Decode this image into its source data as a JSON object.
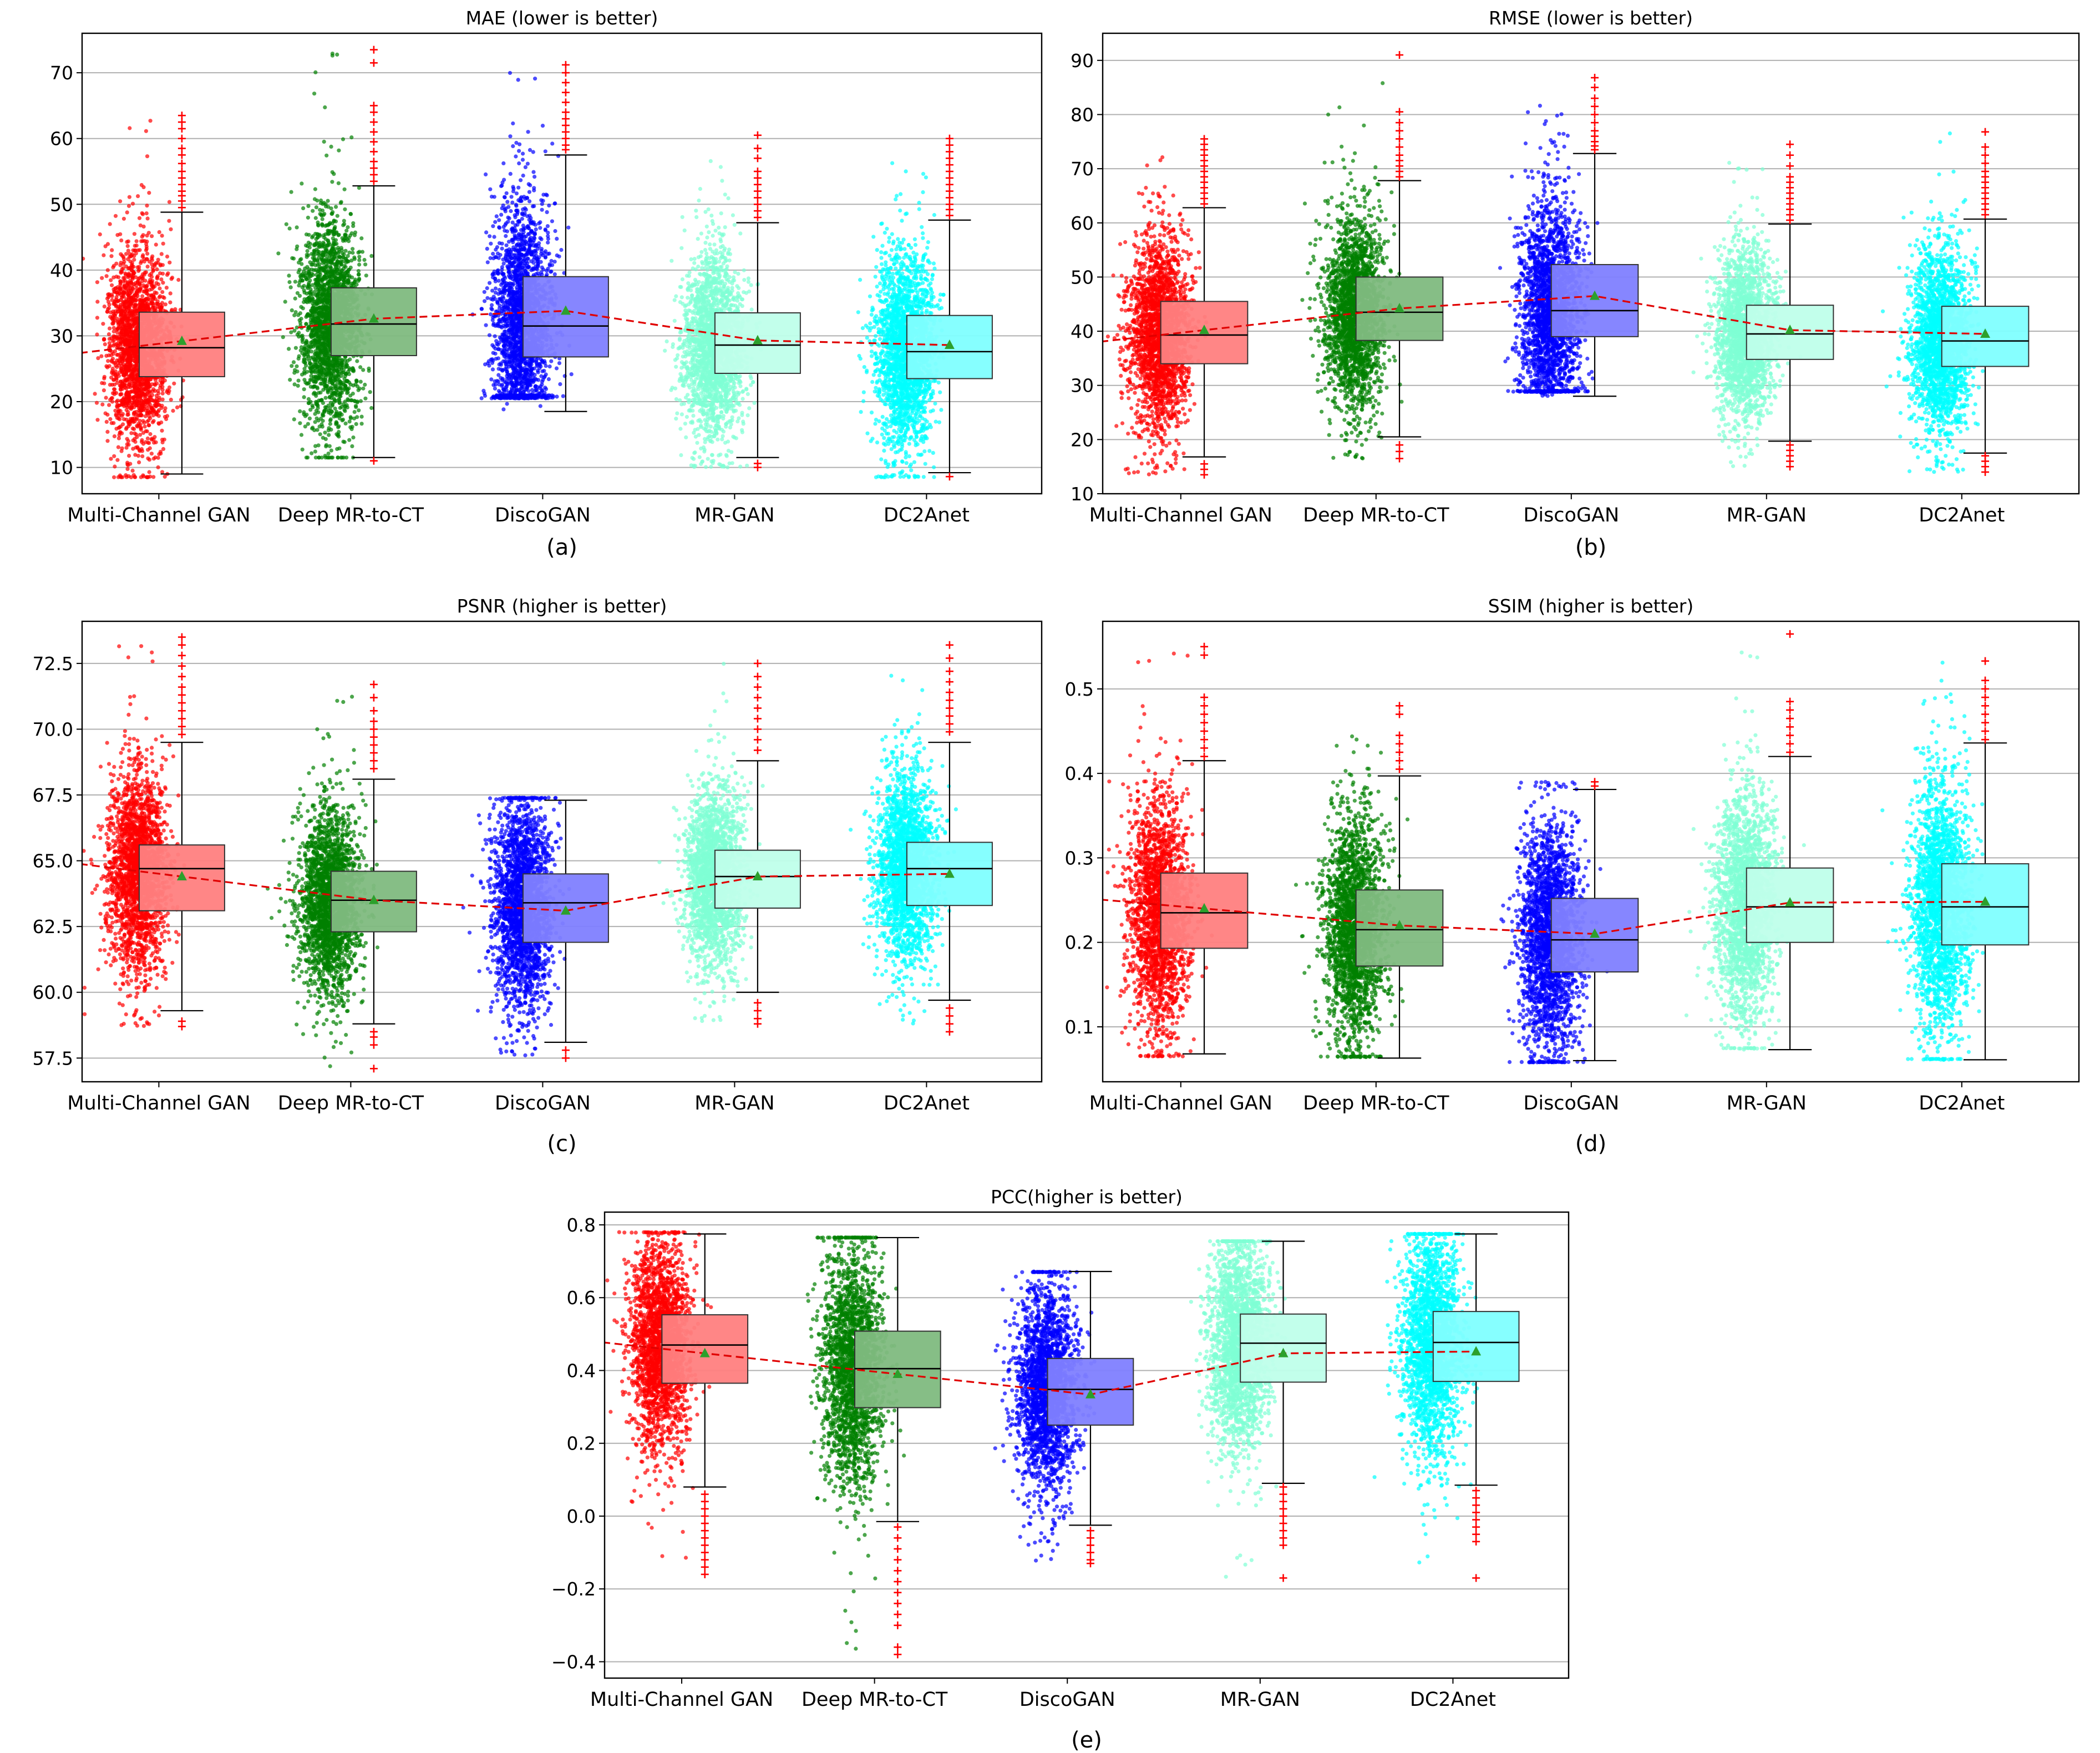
{
  "figure": {
    "method_names": [
      "Multi-Channel GAN",
      "Deep MR-to-CT",
      "DiscoGAN",
      "MR-GAN",
      "DC2Anet"
    ],
    "method_colors": [
      "#ff0000",
      "#008000",
      "#0000ff",
      "#7fffd4",
      "#00ffff"
    ],
    "box_colors": [
      "#ff8080",
      "#80bb80",
      "#8080ff",
      "#bfffea",
      "#80ffff"
    ],
    "mean_line_color": "#e00000",
    "mean_marker_color": "#2ca02c",
    "outlier_color": "#ff0000",
    "captions": [
      "(a)",
      "(b)",
      "(c)",
      "(d)",
      "(e)"
    ]
  },
  "chart_data": [
    {
      "type": "box",
      "title": "MAE (lower is better)",
      "caption": "(a)",
      "categories": [
        "Multi-Channel GAN",
        "Deep MR-to-CT",
        "DiscoGAN",
        "MR-GAN",
        "DC2Anet"
      ],
      "ylim": [
        6,
        76
      ],
      "yticks": [
        10,
        20,
        30,
        40,
        50,
        60,
        70
      ],
      "ytick_labels": [
        "10",
        "20",
        "30",
        "40",
        "50",
        "60",
        "70"
      ],
      "series": [
        {
          "name": "Multi-Channel GAN",
          "whisker_low": 9.0,
          "q1": 23.8,
          "median": 28.2,
          "q3": 33.6,
          "whisker_high": 48.8,
          "mean": 29.2,
          "scatter_min": 8.5,
          "scatter_max": 63.5,
          "outliers": [
            49.5,
            50.5,
            51.3,
            52.0,
            53.0,
            54.0,
            55.0,
            56.2,
            57.5,
            58.5,
            60.0,
            61.5,
            62.5,
            63.5
          ]
        },
        {
          "name": "Deep MR-to-CT",
          "whisker_low": 11.5,
          "q1": 27.0,
          "median": 31.8,
          "q3": 37.3,
          "whisker_high": 52.8,
          "mean": 32.6,
          "scatter_min": 11.5,
          "scatter_max": 73.5,
          "outliers": [
            11.0,
            53.5,
            54.5,
            55.5,
            56.5,
            58.0,
            59.5,
            61.0,
            62.5,
            64.0,
            65.0,
            71.5,
            73.5
          ]
        },
        {
          "name": "DiscoGAN",
          "whisker_low": 18.5,
          "q1": 26.8,
          "median": 31.5,
          "q3": 39.0,
          "whisker_high": 57.5,
          "mean": 33.8,
          "scatter_min": 21.0,
          "scatter_max": 71.5,
          "outliers": [
            58.3,
            59.0,
            60.0,
            61.0,
            62.0,
            63.0,
            64.0,
            65.5,
            67.0,
            68.5,
            70.0,
            71.2
          ]
        },
        {
          "name": "MR-GAN",
          "whisker_low": 11.5,
          "q1": 24.3,
          "median": 28.6,
          "q3": 33.5,
          "whisker_high": 47.2,
          "mean": 29.3,
          "scatter_min": 10.0,
          "scatter_max": 60.5,
          "outliers": [
            10.0,
            10.6,
            48.0,
            49.0,
            50.0,
            51.0,
            52.0,
            53.0,
            54.0,
            55.0,
            57.0,
            58.5,
            60.5
          ]
        },
        {
          "name": "DC2Anet",
          "whisker_low": 9.2,
          "q1": 23.5,
          "median": 27.6,
          "q3": 33.1,
          "whisker_high": 47.6,
          "mean": 28.6,
          "scatter_min": 8.5,
          "scatter_max": 60.0,
          "outliers": [
            8.6,
            48.3,
            49.2,
            50.0,
            51.0,
            52.0,
            53.0,
            54.0,
            55.0,
            56.0,
            57.0,
            58.0,
            59.0,
            60.0
          ]
        }
      ]
    },
    {
      "type": "box",
      "title": "RMSE (lower is better)",
      "caption": "(b)",
      "categories": [
        "Multi-Channel GAN",
        "Deep MR-to-CT",
        "DiscoGAN",
        "MR-GAN",
        "DC2Anet"
      ],
      "ylim": [
        10,
        95
      ],
      "yticks": [
        10,
        20,
        30,
        40,
        50,
        60,
        70,
        80,
        90
      ],
      "ytick_labels": [
        "10",
        "20",
        "30",
        "40",
        "50",
        "60",
        "70",
        "80",
        "90"
      ],
      "series": [
        {
          "name": "Multi-Channel GAN",
          "whisker_low": 16.8,
          "q1": 34.0,
          "median": 39.3,
          "q3": 45.5,
          "whisker_high": 62.8,
          "mean": 40.2,
          "scatter_min": 13.5,
          "scatter_max": 75.5,
          "outliers": [
            13.5,
            14.5,
            15.5,
            63.5,
            64.5,
            65.5,
            66.5,
            67.5,
            68.5,
            69.5,
            70.5,
            71.5,
            72.5,
            73.5,
            74.5,
            75.5
          ]
        },
        {
          "name": "Deep MR-to-CT",
          "whisker_low": 20.5,
          "q1": 38.3,
          "median": 43.5,
          "q3": 50.0,
          "whisker_high": 67.8,
          "mean": 44.2,
          "scatter_min": 16.5,
          "scatter_max": 91.0,
          "outliers": [
            16.5,
            17.8,
            19.0,
            68.5,
            69.5,
            70.5,
            71.5,
            72.5,
            74.0,
            75.5,
            77.0,
            78.5,
            80.5,
            91.0
          ]
        },
        {
          "name": "DiscoGAN",
          "whisker_low": 28.0,
          "q1": 39.0,
          "median": 43.8,
          "q3": 52.3,
          "whisker_high": 72.8,
          "mean": 46.5,
          "scatter_min": 29.0,
          "scatter_max": 87.0,
          "outliers": [
            73.5,
            74.2,
            75.0,
            76.0,
            77.0,
            78.5,
            80.0,
            81.5,
            83.0,
            85.0,
            86.8
          ]
        },
        {
          "name": "MR-GAN",
          "whisker_low": 19.7,
          "q1": 34.8,
          "median": 39.5,
          "q3": 44.8,
          "whisker_high": 59.8,
          "mean": 40.2,
          "scatter_min": 15.0,
          "scatter_max": 74.5,
          "outliers": [
            15.0,
            16.0,
            17.0,
            18.0,
            19.0,
            60.5,
            61.5,
            62.5,
            63.5,
            64.5,
            65.5,
            66.5,
            67.5,
            68.5,
            70.5,
            72.5,
            74.5
          ]
        },
        {
          "name": "DC2Anet",
          "whisker_low": 17.5,
          "q1": 33.5,
          "median": 38.2,
          "q3": 44.6,
          "whisker_high": 60.7,
          "mean": 39.5,
          "scatter_min": 13.8,
          "scatter_max": 77.0,
          "outliers": [
            14.0,
            15.0,
            16.0,
            17.0,
            61.5,
            62.5,
            63.5,
            64.5,
            65.5,
            66.5,
            67.5,
            68.5,
            69.5,
            71.0,
            72.5,
            74.0,
            76.8
          ]
        }
      ]
    },
    {
      "type": "box",
      "title": "PSNR (higher is better)",
      "caption": "(c)",
      "categories": [
        "Multi-Channel GAN",
        "Deep MR-to-CT",
        "DiscoGAN",
        "MR-GAN",
        "DC2Anet"
      ],
      "ylim": [
        56.6,
        74.1
      ],
      "yticks": [
        57.5,
        60.0,
        62.5,
        65.0,
        67.5,
        70.0,
        72.5
      ],
      "ytick_labels": [
        "57.5",
        "60.0",
        "62.5",
        "65.0",
        "67.5",
        "70.0",
        "72.5"
      ],
      "series": [
        {
          "name": "Multi-Channel GAN",
          "whisker_low": 59.3,
          "q1": 63.1,
          "median": 64.7,
          "q3": 65.6,
          "whisker_high": 69.5,
          "mean": 64.4,
          "scatter_min": 58.7,
          "scatter_max": 73.5,
          "outliers": [
            58.7,
            58.9,
            69.8,
            70.1,
            70.4,
            70.7,
            71.0,
            71.3,
            71.6,
            72.0,
            72.4,
            72.8,
            73.2,
            73.5
          ]
        },
        {
          "name": "Deep MR-to-CT",
          "whisker_low": 58.8,
          "q1": 62.3,
          "median": 63.5,
          "q3": 64.6,
          "whisker_high": 68.1,
          "mean": 63.5,
          "scatter_min": 57.1,
          "scatter_max": 71.8,
          "outliers": [
            57.1,
            58.0,
            58.3,
            58.5,
            68.5,
            68.8,
            69.1,
            69.4,
            69.7,
            70.0,
            70.3,
            70.7,
            71.2,
            71.7
          ]
        },
        {
          "name": "DiscoGAN",
          "whisker_low": 58.1,
          "q1": 61.9,
          "median": 63.4,
          "q3": 64.5,
          "whisker_high": 67.3,
          "mean": 63.1,
          "scatter_min": 57.6,
          "scatter_max": 67.4,
          "outliers": [
            57.5,
            57.8
          ]
        },
        {
          "name": "MR-GAN",
          "whisker_low": 60.0,
          "q1": 63.2,
          "median": 64.4,
          "q3": 65.4,
          "whisker_high": 68.8,
          "mean": 64.4,
          "scatter_min": 58.9,
          "scatter_max": 72.5,
          "outliers": [
            58.8,
            59.0,
            59.3,
            59.6,
            69.2,
            69.6,
            70.0,
            70.4,
            70.8,
            71.2,
            71.6,
            72.0,
            72.5
          ]
        },
        {
          "name": "DC2Anet",
          "whisker_low": 59.7,
          "q1": 63.3,
          "median": 64.7,
          "q3": 65.7,
          "whisker_high": 69.5,
          "mean": 64.5,
          "scatter_min": 58.6,
          "scatter_max": 73.3,
          "outliers": [
            58.5,
            58.8,
            59.1,
            59.4,
            69.9,
            70.2,
            70.5,
            70.8,
            71.1,
            71.4,
            71.8,
            72.2,
            72.7,
            73.2
          ]
        }
      ]
    },
    {
      "type": "box",
      "title": "SSIM (higher is better)",
      "caption": "(d)",
      "categories": [
        "Multi-Channel GAN",
        "Deep MR-to-CT",
        "DiscoGAN",
        "MR-GAN",
        "DC2Anet"
      ],
      "ylim": [
        0.035,
        0.58
      ],
      "yticks": [
        0.1,
        0.2,
        0.3,
        0.4,
        0.5
      ],
      "ytick_labels": [
        "0.1",
        "0.2",
        "0.3",
        "0.4",
        "0.5"
      ],
      "series": [
        {
          "name": "Multi-Channel GAN",
          "whisker_low": 0.068,
          "q1": 0.193,
          "median": 0.235,
          "q3": 0.282,
          "whisker_high": 0.415,
          "mean": 0.24,
          "scatter_min": 0.065,
          "scatter_max": 0.55,
          "outliers": [
            0.42,
            0.43,
            0.44,
            0.45,
            0.46,
            0.47,
            0.48,
            0.49,
            0.54,
            0.55
          ]
        },
        {
          "name": "Deep MR-to-CT",
          "whisker_low": 0.063,
          "q1": 0.172,
          "median": 0.215,
          "q3": 0.262,
          "whisker_high": 0.397,
          "mean": 0.22,
          "scatter_min": 0.065,
          "scatter_max": 0.48,
          "outliers": [
            0.405,
            0.415,
            0.425,
            0.435,
            0.445,
            0.47,
            0.48
          ]
        },
        {
          "name": "DiscoGAN",
          "whisker_low": 0.06,
          "q1": 0.165,
          "median": 0.203,
          "q3": 0.252,
          "whisker_high": 0.381,
          "mean": 0.21,
          "scatter_min": 0.058,
          "scatter_max": 0.39,
          "outliers": [
            0.385,
            0.39
          ]
        },
        {
          "name": "MR-GAN",
          "whisker_low": 0.073,
          "q1": 0.2,
          "median": 0.242,
          "q3": 0.288,
          "whisker_high": 0.42,
          "mean": 0.247,
          "scatter_min": 0.075,
          "scatter_max": 0.565,
          "outliers": [
            0.425,
            0.435,
            0.445,
            0.455,
            0.465,
            0.475,
            0.485,
            0.565
          ]
        },
        {
          "name": "DC2Anet",
          "whisker_low": 0.061,
          "q1": 0.197,
          "median": 0.242,
          "q3": 0.293,
          "whisker_high": 0.436,
          "mean": 0.248,
          "scatter_min": 0.062,
          "scatter_max": 0.533,
          "outliers": [
            0.44,
            0.45,
            0.46,
            0.47,
            0.48,
            0.49,
            0.5,
            0.51,
            0.533
          ]
        }
      ]
    },
    {
      "type": "box",
      "title": "PCC(higher is better)",
      "caption": "(e)",
      "categories": [
        "Multi-Channel GAN",
        "Deep MR-to-CT",
        "DiscoGAN",
        "MR-GAN",
        "DC2Anet"
      ],
      "ylim": [
        -0.445,
        0.835
      ],
      "yticks": [
        -0.4,
        -0.2,
        0.0,
        0.2,
        0.4,
        0.6,
        0.8
      ],
      "ytick_labels": [
        "−0.4",
        "−0.2",
        "0.0",
        "0.2",
        "0.4",
        "0.6",
        "0.8"
      ],
      "series": [
        {
          "name": "Multi-Channel GAN",
          "whisker_low": 0.08,
          "q1": 0.365,
          "median": 0.47,
          "q3": 0.553,
          "whisker_high": 0.775,
          "mean": 0.447,
          "scatter_min": -0.16,
          "scatter_max": 0.78,
          "outliers": [
            0.06,
            0.04,
            0.02,
            0.0,
            -0.02,
            -0.04,
            -0.06,
            -0.08,
            -0.1,
            -0.12,
            -0.14,
            -0.16
          ]
        },
        {
          "name": "Deep MR-to-CT",
          "whisker_low": -0.015,
          "q1": 0.298,
          "median": 0.405,
          "q3": 0.508,
          "whisker_high": 0.765,
          "mean": 0.39,
          "scatter_min": -0.38,
          "scatter_max": 0.765,
          "outliers": [
            -0.03,
            -0.06,
            -0.09,
            -0.12,
            -0.15,
            -0.18,
            -0.21,
            -0.24,
            -0.27,
            -0.3,
            -0.36,
            -0.38
          ]
        },
        {
          "name": "DiscoGAN",
          "whisker_low": -0.025,
          "q1": 0.25,
          "median": 0.348,
          "q3": 0.433,
          "whisker_high": 0.672,
          "mean": 0.334,
          "scatter_min": -0.13,
          "scatter_max": 0.67,
          "outliers": [
            -0.04,
            -0.06,
            -0.08,
            -0.1,
            -0.12,
            -0.13
          ]
        },
        {
          "name": "MR-GAN",
          "whisker_low": 0.09,
          "q1": 0.368,
          "median": 0.475,
          "q3": 0.555,
          "whisker_high": 0.755,
          "mean": 0.447,
          "scatter_min": -0.17,
          "scatter_max": 0.755,
          "outliers": [
            0.08,
            0.06,
            0.04,
            0.02,
            0.0,
            -0.02,
            -0.04,
            -0.06,
            -0.08,
            -0.17
          ]
        },
        {
          "name": "DC2Anet",
          "whisker_low": 0.085,
          "q1": 0.37,
          "median": 0.477,
          "q3": 0.562,
          "whisker_high": 0.775,
          "mean": 0.452,
          "scatter_min": -0.17,
          "scatter_max": 0.775,
          "outliers": [
            0.07,
            0.05,
            0.03,
            0.01,
            -0.01,
            -0.03,
            -0.05,
            -0.07,
            -0.17
          ]
        }
      ]
    }
  ]
}
